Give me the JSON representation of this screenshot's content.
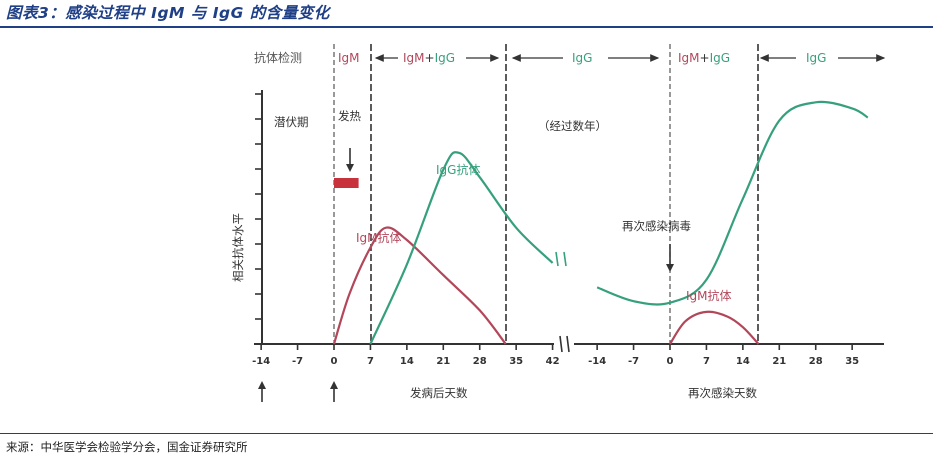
{
  "page_title": "图表3：感染过程中 IgM 与 IgG 的含量变化",
  "source_note": "来源：中华医学会检验学分会，国金证券研究所",
  "colors": {
    "title": "#1f3f86",
    "igm": "#b2475a",
    "igg": "#36a07e",
    "axis": "#333333",
    "fever_bar": "#c8323c",
    "divider": "#555555"
  },
  "chart_data": {
    "type": "line",
    "title": "",
    "ylabel": "相关抗体水平",
    "y_ticks_labeled": false,
    "detection_header": {
      "label": "抗体检测",
      "segments": [
        {
          "text": "IgM",
          "color": "igm"
        },
        {
          "text": "IgM+IgG",
          "color": "mixed"
        },
        {
          "text": "IgG",
          "color": "igg"
        },
        {
          "text": "IgM+IgG",
          "color": "mixed"
        },
        {
          "text": "IgG",
          "color": "igg"
        }
      ]
    },
    "annotations": {
      "latency": "潜伏期",
      "fever": "发热",
      "years": "（经过数年）",
      "reinfection": "再次感染病毒"
    },
    "x_axes": [
      {
        "label": "发病后天数",
        "ticks": [
          "-14",
          "-7",
          "0",
          "7",
          "14",
          "21",
          "28",
          "35",
          "42"
        ],
        "range": [
          -14,
          42
        ]
      },
      {
        "label": "再次感染天数",
        "ticks": [
          "-14",
          "-7",
          "0",
          "7",
          "14",
          "21",
          "28",
          "35"
        ],
        "range": [
          -14,
          35
        ]
      }
    ],
    "series": [
      {
        "name": "IgM抗体",
        "phase": "primary",
        "x_unit": "days after onset",
        "points": [
          [
            0,
            0
          ],
          [
            3,
            3.3
          ],
          [
            7,
            6.3
          ],
          [
            10,
            7.6
          ],
          [
            14,
            6.8
          ],
          [
            21,
            4.5
          ],
          [
            28,
            2.2
          ],
          [
            33,
            0
          ]
        ]
      },
      {
        "name": "IgG抗体",
        "phase": "primary",
        "x_unit": "days after onset",
        "points": [
          [
            7,
            0
          ],
          [
            14,
            5.2
          ],
          [
            21,
            11.4
          ],
          [
            24,
            12.5
          ],
          [
            28,
            10.9
          ],
          [
            35,
            7.6
          ],
          [
            42,
            5.3
          ]
        ]
      },
      {
        "name": "IgG抗体",
        "phase": "reinfection",
        "x_unit": "days after reinfection",
        "points": [
          [
            -14,
            3.7
          ],
          [
            -7,
            2.8
          ],
          [
            0,
            2.7
          ],
          [
            7,
            4.2
          ],
          [
            14,
            9.5
          ],
          [
            21,
            14.6
          ],
          [
            28,
            15.8
          ],
          [
            35,
            15.4
          ],
          [
            38,
            14.8
          ]
        ]
      },
      {
        "name": "IgM抗体",
        "phase": "reinfection",
        "x_unit": "days after reinfection",
        "points": [
          [
            0,
            0
          ],
          [
            3,
            1.5
          ],
          [
            7,
            2.1
          ],
          [
            11,
            1.8
          ],
          [
            14,
            1.1
          ],
          [
            17,
            0
          ]
        ]
      }
    ],
    "curve_labels": {
      "igm_primary": "IgM抗体",
      "igg_primary": "IgG抗体",
      "igm_reinfection": "IgM抗体"
    },
    "fever_period_days": [
      0,
      3
    ]
  }
}
